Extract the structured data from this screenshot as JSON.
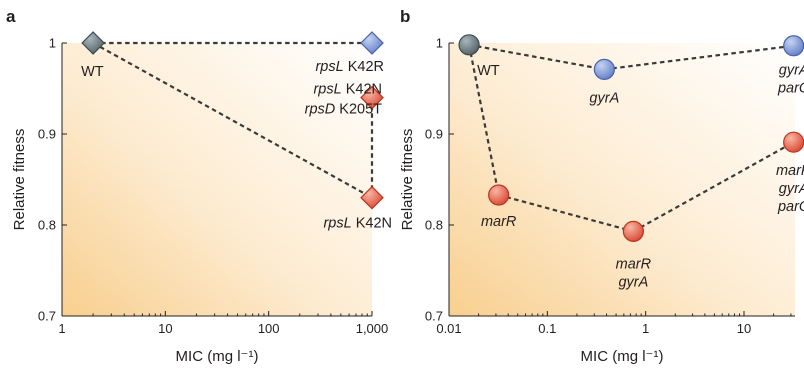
{
  "chart_data": [
    {
      "panel": "a",
      "type": "scatter",
      "xlabel": "MIC (mg l⁻¹)",
      "ylabel": "Relative fitness",
      "xscale": "log",
      "xlim": [
        1,
        1000
      ],
      "ylim": [
        0.7,
        1.0
      ],
      "xticks": [
        {
          "value": 1,
          "label": "1"
        },
        {
          "value": 10,
          "label": "10"
        },
        {
          "value": 100,
          "label": "100"
        },
        {
          "value": 1000,
          "label": "1,000"
        }
      ],
      "yticks": [
        {
          "value": 0.7,
          "label": "0.7"
        },
        {
          "value": 0.8,
          "label": "0.8"
        },
        {
          "value": 0.9,
          "label": "0.9"
        },
        {
          "value": 1.0,
          "label": "1"
        }
      ],
      "marker": "diamond",
      "points": [
        {
          "id": "wt",
          "x": 2,
          "y": 1.0,
          "color": "#6f7f86",
          "labels": [
            "WT"
          ],
          "italic": [
            "",
            ""
          ],
          "anchor": "below"
        },
        {
          "id": "k42r",
          "x": 1000,
          "y": 1.0,
          "color": "#7f9bd6",
          "labels": [
            "rpsL K42R"
          ],
          "anchor": "below-left"
        },
        {
          "id": "k42n-k205t",
          "x": 1000,
          "y": 0.94,
          "color": "#e8604a",
          "labels": [
            "rpsL K42N",
            "rpsD K205T"
          ],
          "anchor": "left"
        },
        {
          "id": "k42n",
          "x": 1000,
          "y": 0.83,
          "color": "#e8604a",
          "labels": [
            "rpsL K42N"
          ],
          "anchor": "below-left"
        }
      ],
      "edges": [
        [
          "wt",
          "k42r"
        ],
        [
          "wt",
          "k42n"
        ],
        [
          "k42n",
          "k42n-k205t"
        ]
      ]
    },
    {
      "panel": "b",
      "type": "scatter",
      "xlabel": "MIC (mg l⁻¹)",
      "ylabel": "Relative fitness",
      "xscale": "log",
      "xlim": [
        0.01,
        33
      ],
      "ylim": [
        0.7,
        1.0
      ],
      "xticks": [
        {
          "value": 0.01,
          "label": "0.01"
        },
        {
          "value": 0.1,
          "label": "0.1"
        },
        {
          "value": 1,
          "label": "1"
        },
        {
          "value": 10,
          "label": "10"
        }
      ],
      "yticks": [
        {
          "value": 0.7,
          "label": "0.7"
        },
        {
          "value": 0.8,
          "label": "0.8"
        },
        {
          "value": 0.9,
          "label": "0.9"
        },
        {
          "value": 1.0,
          "label": "1"
        }
      ],
      "marker": "circle",
      "points": [
        {
          "id": "wt",
          "x": 0.016,
          "y": 0.998,
          "color": "#6f7f86",
          "labels": [
            "WT"
          ],
          "anchor": "below-right"
        },
        {
          "id": "gyra",
          "x": 0.38,
          "y": 0.971,
          "color": "#7f9bd6",
          "labels": [
            "gyrA"
          ],
          "anchor": "below"
        },
        {
          "id": "gyra-parc",
          "x": 32,
          "y": 0.997,
          "color": "#7f9bd6",
          "labels": [
            "gyrA",
            "parC"
          ],
          "anchor": "below"
        },
        {
          "id": "marr",
          "x": 0.032,
          "y": 0.833,
          "color": "#e8604a",
          "labels": [
            "marR"
          ],
          "anchor": "below"
        },
        {
          "id": "marr-gyra",
          "x": 0.75,
          "y": 0.793,
          "color": "#e8604a",
          "labels": [
            "marR",
            "gyrA"
          ],
          "anchor": "below"
        },
        {
          "id": "marr-gyra-parc",
          "x": 32,
          "y": 0.891,
          "color": "#e8604a",
          "labels": [
            "marR",
            "gyrA",
            "parC"
          ],
          "anchor": "below"
        }
      ],
      "edges": [
        [
          "wt",
          "gyra"
        ],
        [
          "gyra",
          "gyra-parc"
        ],
        [
          "wt",
          "marr"
        ],
        [
          "marr",
          "marr-gyra"
        ],
        [
          "marr-gyra",
          "marr-gyra-parc"
        ]
      ]
    }
  ]
}
